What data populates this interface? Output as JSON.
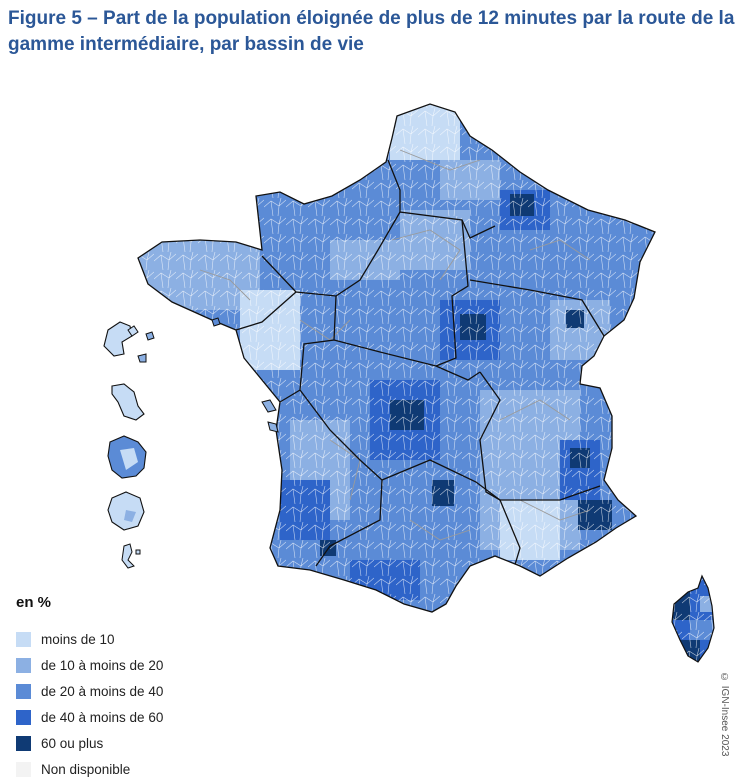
{
  "title": "Figure 5 – Part de la population éloignée de plus de 12 minutes par la route de la gamme intermédiaire, par bassin de vie",
  "legend": {
    "title": "en %",
    "items": [
      {
        "label": "moins de 10",
        "color": "#c6dcf5"
      },
      {
        "label": "de 10 à moins de 20",
        "color": "#8cb0e3"
      },
      {
        "label": "de 20 à moins de 40",
        "color": "#5b8bd6"
      },
      {
        "label": "de 40 à moins de 60",
        "color": "#2e64c9"
      },
      {
        "label": "60 ou plus",
        "color": "#0f3a74"
      },
      {
        "label": "Non disponible",
        "color": "#f3f3f3"
      }
    ]
  },
  "copyright": "© IGN-Insee 2023",
  "colors": {
    "title": "#2b5797",
    "region_border": "#111111",
    "department_border": "#9a9a9a",
    "basin_border": "#ffffff"
  },
  "map": {
    "territories": [
      "france-metropolitaine",
      "corse",
      "guadeloupe",
      "martinique",
      "guyane",
      "la-reunion",
      "mayotte"
    ]
  }
}
